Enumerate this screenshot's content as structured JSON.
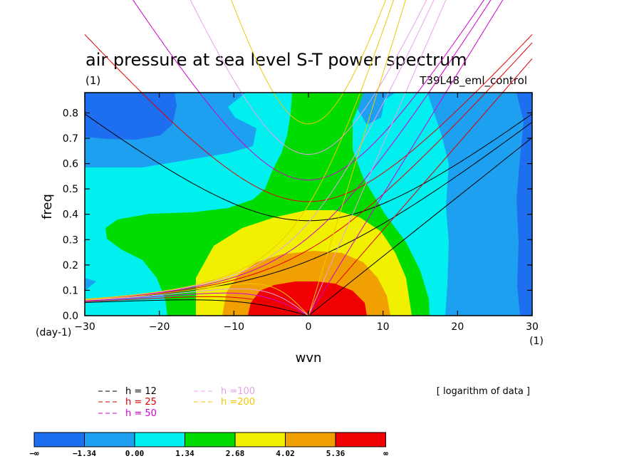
{
  "chart_data": {
    "type": "heatmap",
    "title": "air pressure at sea level S-T power spectrum",
    "units_left": "(1)",
    "experiment": "T39L48_eml_control",
    "note": "[ logarithm of data ]",
    "xlabel": "wvn",
    "ylabel": "freq",
    "x_unit": "(1)",
    "y_unit": "(day-1)",
    "xlim": [
      -30,
      30
    ],
    "ylim": [
      0,
      0.88
    ],
    "xticks": [
      "−30",
      "−20",
      "−10",
      "0",
      "10",
      "20",
      "30"
    ],
    "xtick_values": [
      -30,
      -20,
      -10,
      0,
      10,
      20,
      30
    ],
    "yticks": [
      "0.0",
      "0.1",
      "0.2",
      "0.3",
      "0.4",
      "0.5",
      "0.6",
      "0.7",
      "0.8"
    ],
    "ytick_values": [
      0,
      0.1,
      0.2,
      0.3,
      0.4,
      0.5,
      0.6,
      0.7,
      0.8
    ],
    "colorbar": {
      "levels": [
        "−∞",
        "−1.34",
        "0.00",
        "1.34",
        "2.68",
        "4.02",
        "5.36",
        "∞"
      ],
      "colors": [
        "#1e6ef0",
        "#1ea0f0",
        "#00f0f0",
        "#00dc00",
        "#f0f000",
        "#f0a000",
        "#f00000"
      ]
    },
    "dispersion_curves": [
      {
        "name": "h = 12",
        "color": "#000000",
        "h": 12
      },
      {
        "name": "h = 25",
        "color": "#e00000",
        "h": 25
      },
      {
        "name": "h = 50",
        "color": "#d000d0",
        "h": 50
      },
      {
        "name": "h =100",
        "color": "#e8a0e8",
        "h": 100
      },
      {
        "name": "h =200",
        "color": "#f0c800",
        "h": 200
      }
    ]
  }
}
